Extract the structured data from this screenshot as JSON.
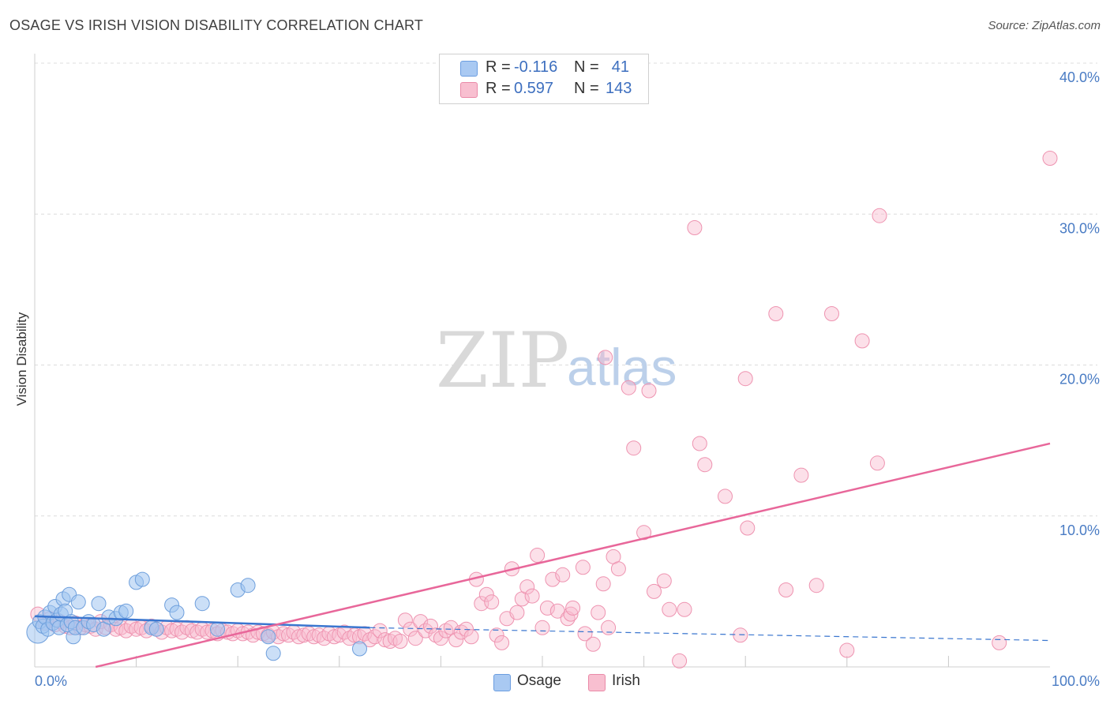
{
  "header": {
    "title": "OSAGE VS IRISH VISION DISABILITY CORRELATION CHART",
    "source": "Source: ZipAtlas.com"
  },
  "watermark": {
    "zip": "ZIP",
    "atlas": "atlas"
  },
  "legend": {
    "rows": [
      {
        "r_label": "R =",
        "r_value": "-0.116",
        "n_label": "N =",
        "n_value": "41",
        "color": "#a9c9f2",
        "border": "#6b9de0"
      },
      {
        "r_label": "R =",
        "r_value": "0.597",
        "n_label": "N =",
        "n_value": "143",
        "color": "#f8bfd0",
        "border": "#ea8aa8"
      }
    ]
  },
  "bottom_legend": {
    "osage": "Osage",
    "irish": "Irish"
  },
  "colors": {
    "osage_fill": "rgba(160,196,240,0.55)",
    "osage_stroke": "#6e9fdc",
    "osage_line": "#3a76cf",
    "irish_fill": "rgba(248,186,206,0.45)",
    "irish_stroke": "#ee93b0",
    "irish_line": "#e8679a",
    "grid": "#dcdcdc",
    "tick_text": "#4a7cc4"
  },
  "chart_data": {
    "type": "scatter",
    "title": "OSAGE VS IRISH VISION DISABILITY CORRELATION CHART",
    "xlabel": "",
    "ylabel": "Vision Disability",
    "xlim": [
      0,
      100
    ],
    "ylim": [
      0,
      40
    ],
    "x_tick_labels": [
      "0.0%",
      "100.0%"
    ],
    "y_ticks": [
      10,
      20,
      30,
      40
    ],
    "y_tick_labels": [
      "10.0%",
      "20.0%",
      "30.0%",
      "40.0%"
    ],
    "grid": true,
    "legend_position": "top-center",
    "series": [
      {
        "name": "Osage",
        "points": [
          [
            0.3,
            2.3
          ],
          [
            0.5,
            3.0
          ],
          [
            0.8,
            2.7
          ],
          [
            1.0,
            3.3
          ],
          [
            1.3,
            2.5
          ],
          [
            1.5,
            3.6
          ],
          [
            1.8,
            2.9
          ],
          [
            2.0,
            4.0
          ],
          [
            2.2,
            3.1
          ],
          [
            2.4,
            2.6
          ],
          [
            2.6,
            3.5
          ],
          [
            2.8,
            4.5
          ],
          [
            3.0,
            3.7
          ],
          [
            3.2,
            2.8
          ],
          [
            3.4,
            4.8
          ],
          [
            3.6,
            3.0
          ],
          [
            3.8,
            2.0
          ],
          [
            4.0,
            2.6
          ],
          [
            4.3,
            4.3
          ],
          [
            4.8,
            2.6
          ],
          [
            5.3,
            3.0
          ],
          [
            5.8,
            2.8
          ],
          [
            6.3,
            4.2
          ],
          [
            6.8,
            2.5
          ],
          [
            7.3,
            3.3
          ],
          [
            8.0,
            3.2
          ],
          [
            8.5,
            3.6
          ],
          [
            9.0,
            3.7
          ],
          [
            10.0,
            5.6
          ],
          [
            10.6,
            5.8
          ],
          [
            11.5,
            2.6
          ],
          [
            12.0,
            2.5
          ],
          [
            13.5,
            4.1
          ],
          [
            14.0,
            3.6
          ],
          [
            16.5,
            4.2
          ],
          [
            18.0,
            2.5
          ],
          [
            20.0,
            5.1
          ],
          [
            21.0,
            5.4
          ],
          [
            23.0,
            2.0
          ],
          [
            23.5,
            0.9
          ],
          [
            32.0,
            1.2
          ]
        ],
        "trend": {
          "x": [
            0,
            33
          ],
          "y": [
            3.35,
            2.6
          ]
        },
        "trend_dashed": {
          "x": [
            33,
            100
          ],
          "y": [
            2.6,
            1.75
          ]
        }
      },
      {
        "name": "Irish",
        "points": [
          [
            0.3,
            3.5
          ],
          [
            1.0,
            2.9
          ],
          [
            1.5,
            3.2
          ],
          [
            2.0,
            2.8
          ],
          [
            2.5,
            3.0
          ],
          [
            3.0,
            2.7
          ],
          [
            3.5,
            2.6
          ],
          [
            4.0,
            2.9
          ],
          [
            4.5,
            2.6
          ],
          [
            5.0,
            2.8
          ],
          [
            5.5,
            2.7
          ],
          [
            6.0,
            2.5
          ],
          [
            6.5,
            3.0
          ],
          [
            7.0,
            2.6
          ],
          [
            7.5,
            2.8
          ],
          [
            8.0,
            2.5
          ],
          [
            8.5,
            2.6
          ],
          [
            9.0,
            2.4
          ],
          [
            9.5,
            2.7
          ],
          [
            10.0,
            2.5
          ],
          [
            10.5,
            2.6
          ],
          [
            11.0,
            2.4
          ],
          [
            11.5,
            2.7
          ],
          [
            12.0,
            2.5
          ],
          [
            12.5,
            2.3
          ],
          [
            13.0,
            2.6
          ],
          [
            13.5,
            2.4
          ],
          [
            14.0,
            2.5
          ],
          [
            14.5,
            2.3
          ],
          [
            15.0,
            2.6
          ],
          [
            15.5,
            2.4
          ],
          [
            16.0,
            2.3
          ],
          [
            16.5,
            2.5
          ],
          [
            17.0,
            2.3
          ],
          [
            17.5,
            2.4
          ],
          [
            18.0,
            2.2
          ],
          [
            18.5,
            2.4
          ],
          [
            19.0,
            2.3
          ],
          [
            19.5,
            2.2
          ],
          [
            20.0,
            2.4
          ],
          [
            20.5,
            2.2
          ],
          [
            21.0,
            2.3
          ],
          [
            21.5,
            2.1
          ],
          [
            22.0,
            2.3
          ],
          [
            22.5,
            2.2
          ],
          [
            23.0,
            2.1
          ],
          [
            23.5,
            2.3
          ],
          [
            24.0,
            2.0
          ],
          [
            24.5,
            2.2
          ],
          [
            25.0,
            2.1
          ],
          [
            25.5,
            2.3
          ],
          [
            26.0,
            2.0
          ],
          [
            26.5,
            2.1
          ],
          [
            27.0,
            2.2
          ],
          [
            27.5,
            2.0
          ],
          [
            28.0,
            2.1
          ],
          [
            28.5,
            1.9
          ],
          [
            29.0,
            2.2
          ],
          [
            29.5,
            2.0
          ],
          [
            30.0,
            2.1
          ],
          [
            30.5,
            2.3
          ],
          [
            31.0,
            1.9
          ],
          [
            31.5,
            2.1
          ],
          [
            32.0,
            2.0
          ],
          [
            32.5,
            2.2
          ],
          [
            33.0,
            1.8
          ],
          [
            33.5,
            2.0
          ],
          [
            34.0,
            2.4
          ],
          [
            34.5,
            1.8
          ],
          [
            35.0,
            1.7
          ],
          [
            35.5,
            1.9
          ],
          [
            36.0,
            1.7
          ],
          [
            36.5,
            3.1
          ],
          [
            37.0,
            2.5
          ],
          [
            37.5,
            1.9
          ],
          [
            38.0,
            3.0
          ],
          [
            38.5,
            2.4
          ],
          [
            39.0,
            2.7
          ],
          [
            39.5,
            2.1
          ],
          [
            40.0,
            1.9
          ],
          [
            40.5,
            2.4
          ],
          [
            41.0,
            2.6
          ],
          [
            41.5,
            1.8
          ],
          [
            42.0,
            2.3
          ],
          [
            42.5,
            2.5
          ],
          [
            43.0,
            2.0
          ],
          [
            43.5,
            5.8
          ],
          [
            44.0,
            4.2
          ],
          [
            44.5,
            4.8
          ],
          [
            45.0,
            4.3
          ],
          [
            45.5,
            2.1
          ],
          [
            46.0,
            1.6
          ],
          [
            46.5,
            3.2
          ],
          [
            47.0,
            6.5
          ],
          [
            47.5,
            3.6
          ],
          [
            48.0,
            4.5
          ],
          [
            48.5,
            5.3
          ],
          [
            49.0,
            4.7
          ],
          [
            49.5,
            7.4
          ],
          [
            50.0,
            2.6
          ],
          [
            50.5,
            3.9
          ],
          [
            51.0,
            5.8
          ],
          [
            51.5,
            3.7
          ],
          [
            52.0,
            6.1
          ],
          [
            52.5,
            3.2
          ],
          [
            52.8,
            3.5
          ],
          [
            53.0,
            3.9
          ],
          [
            54.0,
            6.6
          ],
          [
            54.2,
            2.2
          ],
          [
            55.0,
            1.5
          ],
          [
            55.5,
            3.6
          ],
          [
            56.0,
            5.5
          ],
          [
            56.2,
            20.5
          ],
          [
            56.5,
            2.6
          ],
          [
            57.0,
            7.3
          ],
          [
            57.5,
            6.5
          ],
          [
            58.5,
            18.5
          ],
          [
            59.0,
            14.5
          ],
          [
            60.0,
            8.9
          ],
          [
            60.5,
            18.3
          ],
          [
            61.0,
            5.0
          ],
          [
            62.0,
            5.7
          ],
          [
            62.5,
            3.8
          ],
          [
            63.5,
            0.4
          ],
          [
            64.0,
            3.8
          ],
          [
            65.0,
            29.1
          ],
          [
            65.5,
            14.8
          ],
          [
            66.0,
            13.4
          ],
          [
            68.0,
            11.3
          ],
          [
            69.5,
            2.1
          ],
          [
            70.0,
            19.1
          ],
          [
            70.2,
            9.2
          ],
          [
            73.0,
            23.4
          ],
          [
            74.0,
            5.1
          ],
          [
            75.5,
            12.7
          ],
          [
            77.0,
            5.4
          ],
          [
            78.5,
            23.4
          ],
          [
            80.0,
            1.1
          ],
          [
            81.5,
            21.6
          ],
          [
            83.0,
            13.5
          ],
          [
            83.2,
            29.9
          ],
          [
            95.0,
            1.6
          ],
          [
            100.0,
            33.7
          ]
        ],
        "trend": {
          "x": [
            6,
            100
          ],
          "y": [
            0,
            14.8
          ]
        }
      }
    ]
  }
}
